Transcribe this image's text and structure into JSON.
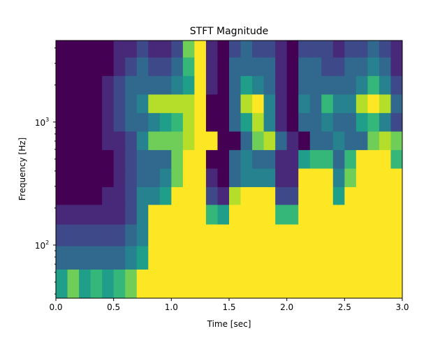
{
  "chart_data": {
    "type": "heatmap",
    "title": "STFT Magnitude",
    "xlabel": "Time [sec]",
    "ylabel": "Frequency [Hz]",
    "xlim": [
      0.0,
      3.0
    ],
    "ylim": [
      37,
      4600
    ],
    "yscale": "log",
    "grid": false,
    "colormap": "viridis",
    "xticks": [
      {
        "value": 0.0,
        "label": "0.0"
      },
      {
        "value": 0.5,
        "label": "0.5"
      },
      {
        "value": 1.0,
        "label": "1.0"
      },
      {
        "value": 1.5,
        "label": "1.5"
      },
      {
        "value": 2.0,
        "label": "2.0"
      },
      {
        "value": 2.5,
        "label": "2.5"
      },
      {
        "value": 3.0,
        "label": "3.0"
      }
    ],
    "yticks": [
      {
        "value": 100,
        "base": "10",
        "exp": "2"
      },
      {
        "value": 1000,
        "base": "10",
        "exp": "3"
      }
    ],
    "time_step": 0.1,
    "freq_centers": [
      4000,
      2800,
      2000,
      1400,
      1000,
      700,
      500,
      350,
      250,
      180,
      120,
      80,
      50
    ],
    "magnitude_levels": [
      "000001121127910232210222122321",
      "000001232236910333310332233431",
      "000012333345910354310333334642",
      "000012348888900389410436448983",
      "000012334568900358410334335642",
      "000011247778990037831033433787",
      "000001233379900343311566369996",
      "000001233479910344411999479999",
      "000011244599921899922999599999",
      "111111249999965999966999999999",
      "222222349999999999999999999999",
      "333333459999999999999999999999",
      "575656799999999999999999999999"
    ],
    "colors": [
      "#440154",
      "#482878",
      "#3e4989",
      "#31688e",
      "#26828e",
      "#1f9e89",
      "#35b779",
      "#6ece58",
      "#b5de2b",
      "#fde725"
    ]
  }
}
